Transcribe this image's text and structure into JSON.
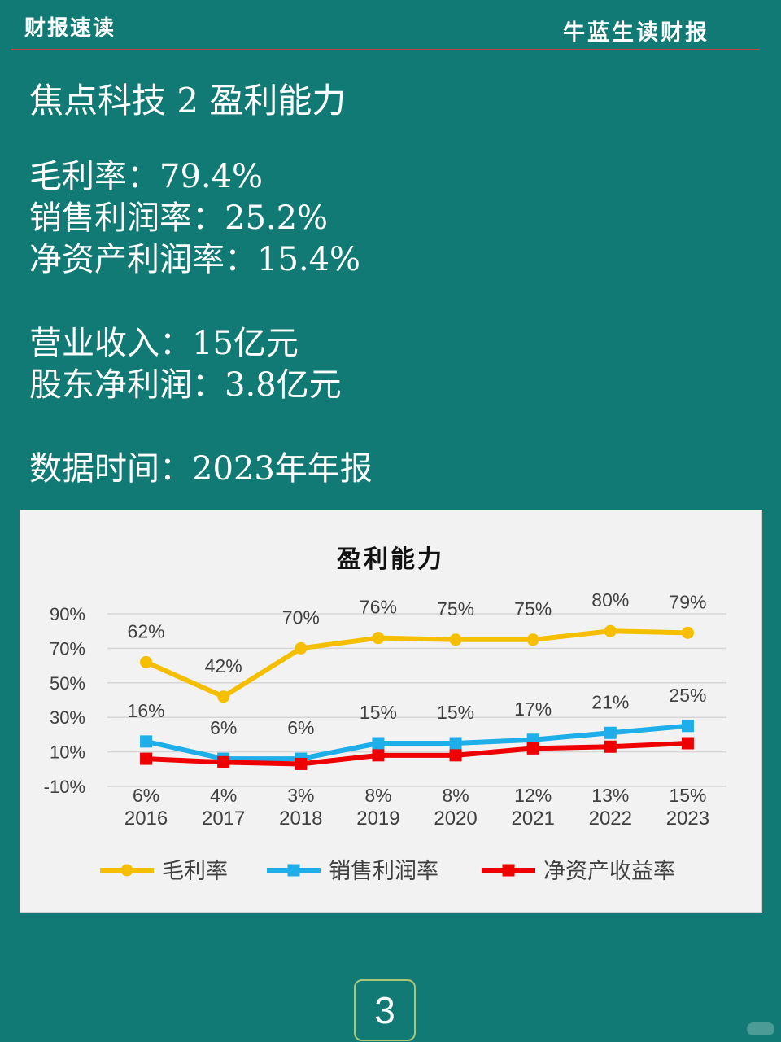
{
  "header": {
    "left_label": "财报速读",
    "right_label": "牛蓝生读财报"
  },
  "title": "焦点科技 2 盈利能力",
  "stats": {
    "gross_margin": "毛利率：79.4%",
    "net_sales_margin": "销售利润率：25.2%",
    "roe": "净资产利润率：15.4%",
    "revenue": "营业收入：15亿元",
    "net_profit": "股东净利润：3.8亿元",
    "data_time": "数据时间：2023年年报"
  },
  "colors": {
    "background": "#127a74",
    "gross_margin": "#f5bf00",
    "net_sales_margin": "#1eaeea",
    "roe": "#ee0000"
  },
  "chart_data": {
    "type": "line",
    "title": "盈利能力",
    "categories": [
      "2016",
      "2017",
      "2018",
      "2019",
      "2020",
      "2021",
      "2022",
      "2023"
    ],
    "y_ticks": [
      "90%",
      "70%",
      "50%",
      "30%",
      "10%",
      "-10%"
    ],
    "ylim": [
      -10,
      90
    ],
    "grid": true,
    "legend_position": "bottom",
    "series": [
      {
        "name": "毛利率",
        "values": [
          62,
          42,
          70,
          76,
          75,
          75,
          80,
          79
        ],
        "labels": [
          "62%",
          "42%",
          "70%",
          "76%",
          "75%",
          "75%",
          "80%",
          "79%"
        ],
        "color": "#f5bf00",
        "marker": "circle"
      },
      {
        "name": "销售利润率",
        "values": [
          16,
          6,
          6,
          15,
          15,
          17,
          21,
          25
        ],
        "labels": [
          "16%",
          "6%",
          "6%",
          "15%",
          "15%",
          "17%",
          "21%",
          "25%"
        ],
        "color": "#1eaeea",
        "marker": "square"
      },
      {
        "name": "净资产收益率",
        "values": [
          6,
          4,
          3,
          8,
          8,
          12,
          13,
          15
        ],
        "labels": [
          "6%",
          "4%",
          "3%",
          "8%",
          "8%",
          "12%",
          "13%",
          "15%"
        ],
        "color": "#ee0000",
        "marker": "square"
      }
    ]
  },
  "page": {
    "number": "3"
  }
}
